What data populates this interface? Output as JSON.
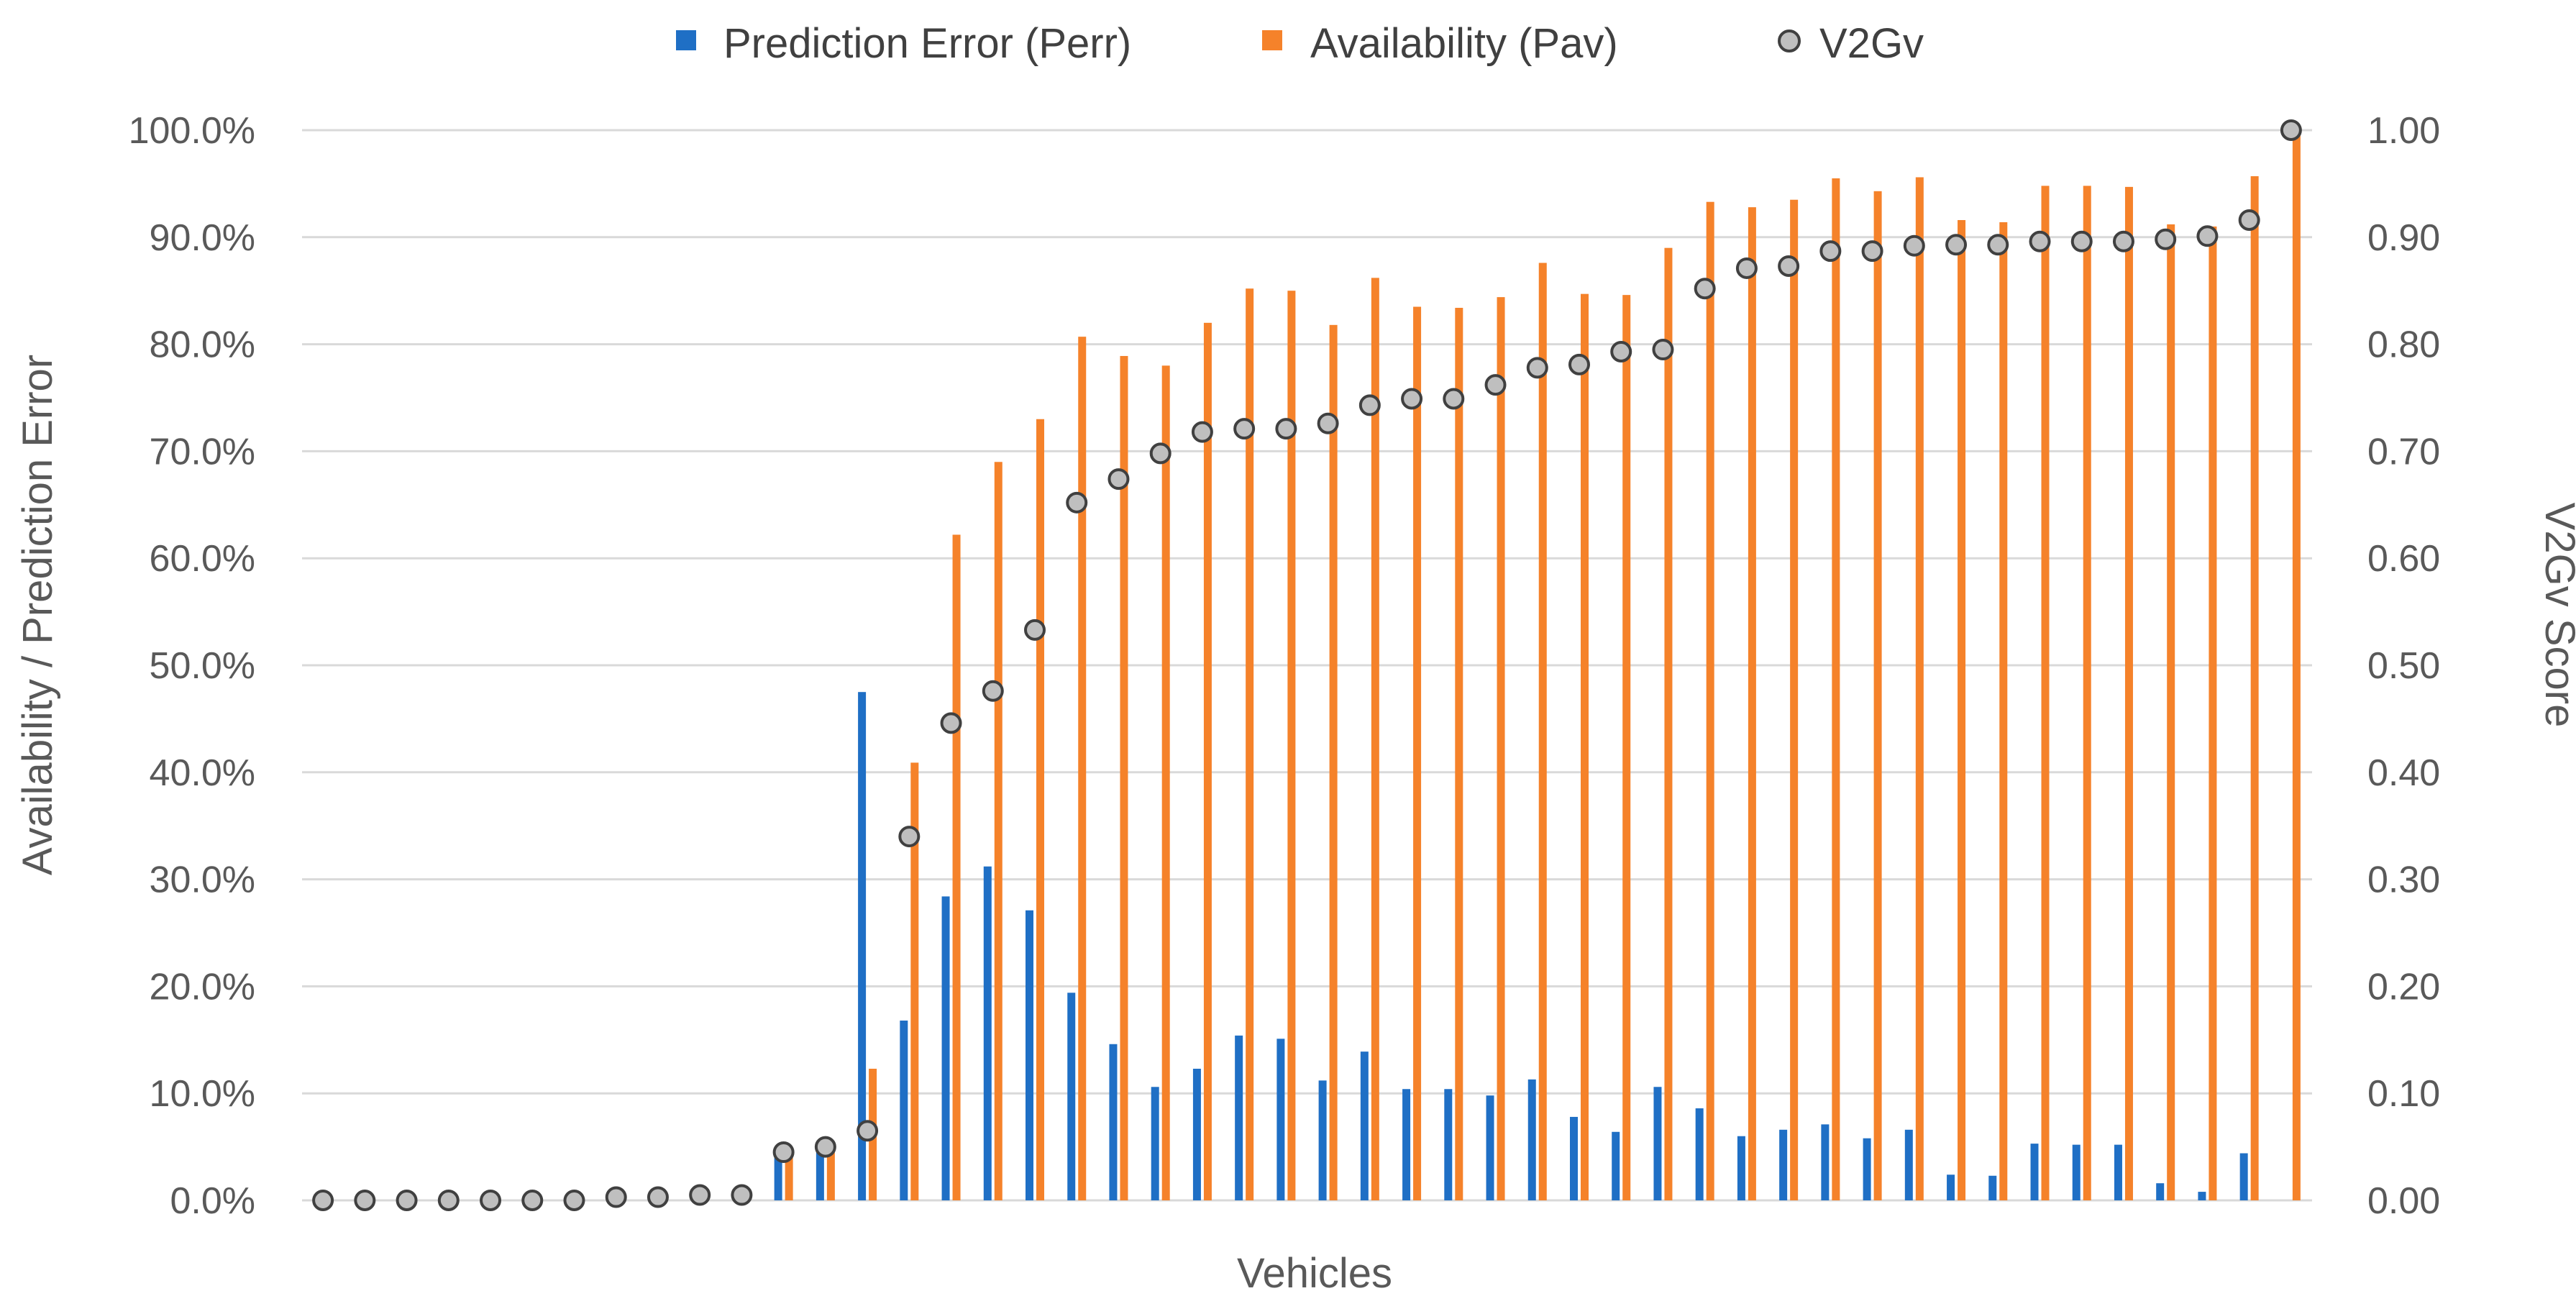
{
  "chart_data": {
    "type": "bar",
    "xlabel": "Vehicles",
    "ylabel_left": "Availability / Prediction Error",
    "ylabel_right": "V2Gv Score",
    "ylim_left": [
      0,
      100
    ],
    "ylim_right": [
      0,
      1
    ],
    "left_tick_labels": [
      "0.0%",
      "10.0%",
      "20.0%",
      "30.0%",
      "40.0%",
      "50.0%",
      "60.0%",
      "70.0%",
      "80.0%",
      "90.0%",
      "100.0%"
    ],
    "right_tick_labels": [
      "0.00",
      "0.10",
      "0.20",
      "0.30",
      "0.40",
      "0.50",
      "0.60",
      "0.70",
      "0.80",
      "0.90",
      "1.00"
    ],
    "grid": true,
    "legend_position": "top",
    "series": [
      {
        "name": "Prediction Error (Perr)",
        "kind": "bar",
        "axis": "left",
        "color": "#1f6fc5",
        "values": [
          0,
          0,
          0,
          0,
          0,
          0,
          0,
          0,
          0,
          0,
          0,
          4.2,
          4.8,
          47.5,
          16.8,
          28.4,
          31.2,
          27.1,
          19.4,
          14.6,
          10.6,
          12.3,
          15.4,
          15.1,
          11.2,
          13.9,
          10.4,
          10.4,
          9.8,
          11.3,
          7.8,
          6.4,
          10.6,
          8.6,
          6.0,
          6.6,
          7.1,
          5.8,
          6.6,
          2.4,
          2.3,
          5.3,
          5.2,
          5.2,
          1.6,
          0.8,
          4.4,
          0
        ]
      },
      {
        "name": "Availability (Pav)",
        "kind": "bar",
        "axis": "left",
        "color": "#f5822a",
        "values": [
          0,
          0,
          0,
          0,
          0,
          0,
          0,
          0,
          0,
          0,
          0,
          4.5,
          5.5,
          12.3,
          40.9,
          62.2,
          69.0,
          73.0,
          80.7,
          78.9,
          78.0,
          82.0,
          85.2,
          85.0,
          81.8,
          86.2,
          83.5,
          83.4,
          84.4,
          87.6,
          84.7,
          84.6,
          89.0,
          93.3,
          92.8,
          93.5,
          95.5,
          94.3,
          95.6,
          91.6,
          91.4,
          94.8,
          94.8,
          94.7,
          91.2,
          91.0,
          95.7,
          100.0
        ]
      },
      {
        "name": "V2Gv",
        "kind": "scatter",
        "axis": "right",
        "color": "#bfbfbf",
        "values": [
          0.0,
          0.0,
          0.0,
          0.0,
          0.0,
          0.0,
          0.0,
          0.003,
          0.003,
          0.005,
          0.005,
          0.045,
          0.05,
          0.065,
          0.34,
          0.446,
          0.476,
          0.533,
          0.652,
          0.674,
          0.698,
          0.718,
          0.721,
          0.721,
          0.726,
          0.743,
          0.749,
          0.749,
          0.762,
          0.778,
          0.781,
          0.793,
          0.795,
          0.852,
          0.871,
          0.873,
          0.887,
          0.887,
          0.892,
          0.893,
          0.893,
          0.896,
          0.896,
          0.896,
          0.898,
          0.901,
          0.916,
          1.0
        ]
      }
    ]
  }
}
